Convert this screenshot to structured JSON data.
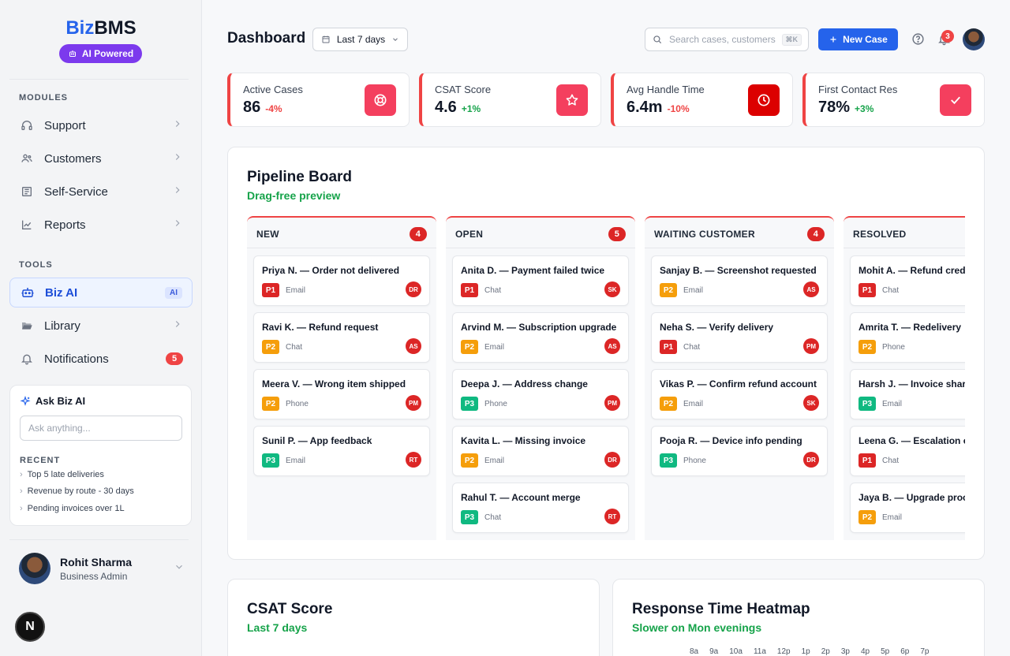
{
  "sidebar": {
    "logo_a": "Biz",
    "logo_b": "BMS",
    "ai_badge": "AI Powered",
    "modules_label": "MODULES",
    "modules": [
      {
        "label": "Support",
        "icon": "headset-icon"
      },
      {
        "label": "Customers",
        "icon": "users-icon"
      },
      {
        "label": "Self-Service",
        "icon": "newspaper-icon"
      },
      {
        "label": "Reports",
        "icon": "chart-line-icon"
      }
    ],
    "tools_label": "TOOLS",
    "tools": {
      "biz_ai": {
        "label": "Biz AI",
        "tag": "AI"
      },
      "library": {
        "label": "Library"
      },
      "notifications": {
        "label": "Notifications",
        "count": "5"
      }
    },
    "ask": {
      "title": "Ask Biz AI",
      "placeholder": "Ask anything...",
      "recent_label": "RECENT",
      "recent": [
        "Top 5 late deliveries",
        "Revenue by route - 30 days",
        "Pending invoices over 1L"
      ]
    },
    "user": {
      "name": "Rohit Sharma",
      "role": "Business Admin"
    },
    "n_button": "N"
  },
  "header": {
    "title": "Dashboard",
    "range": "Last 7 days",
    "search_placeholder": "Search cases, customers...",
    "shortcut": "⌘K",
    "new_case": "New Case",
    "notification_count": "3"
  },
  "kpis": [
    {
      "label": "Active Cases",
      "value": "86",
      "delta": "-4%",
      "trend": "neg",
      "icon": "lifebuoy-icon",
      "color": "#f43f5e"
    },
    {
      "label": "CSAT Score",
      "value": "4.6",
      "delta": "+1%",
      "trend": "pos",
      "icon": "star-icon",
      "color": "#f43f5e"
    },
    {
      "label": "Avg Handle Time",
      "value": "6.4m",
      "delta": "-10%",
      "trend": "neg",
      "icon": "clock-icon",
      "color": "#dc0000"
    },
    {
      "label": "First Contact Res",
      "value": "78%",
      "delta": "+3%",
      "trend": "pos",
      "icon": "check-icon",
      "color": "#f43f5e"
    }
  ],
  "pipeline": {
    "title": "Pipeline Board",
    "subtitle": "Drag-free preview",
    "columns": [
      {
        "name": "NEW",
        "count": "4",
        "cards": [
          {
            "title": "Priya N. — Order not delivered",
            "priority": "P1",
            "channel": "Email",
            "assignee": "DR"
          },
          {
            "title": "Ravi K. — Refund request",
            "priority": "P2",
            "channel": "Chat",
            "assignee": "AS"
          },
          {
            "title": "Meera V. — Wrong item shipped",
            "priority": "P2",
            "channel": "Phone",
            "assignee": "PM"
          },
          {
            "title": "Sunil P. — App feedback",
            "priority": "P3",
            "channel": "Email",
            "assignee": "RT"
          }
        ]
      },
      {
        "name": "OPEN",
        "count": "5",
        "cards": [
          {
            "title": "Anita D. — Payment failed twice",
            "priority": "P1",
            "channel": "Chat",
            "assignee": "SK"
          },
          {
            "title": "Arvind M. — Subscription upgrade",
            "priority": "P2",
            "channel": "Email",
            "assignee": "AS"
          },
          {
            "title": "Deepa J. — Address change",
            "priority": "P3",
            "channel": "Phone",
            "assignee": "PM"
          },
          {
            "title": "Kavita L. — Missing invoice",
            "priority": "P2",
            "channel": "Email",
            "assignee": "DR"
          },
          {
            "title": "Rahul T. — Account merge",
            "priority": "P3",
            "channel": "Chat",
            "assignee": "RT"
          }
        ]
      },
      {
        "name": "WAITING CUSTOMER",
        "count": "4",
        "cards": [
          {
            "title": "Sanjay B. — Screenshot requested",
            "priority": "P2",
            "channel": "Email",
            "assignee": "AS"
          },
          {
            "title": "Neha S. — Verify delivery",
            "priority": "P1",
            "channel": "Chat",
            "assignee": "PM"
          },
          {
            "title": "Vikas P. — Confirm refund account",
            "priority": "P2",
            "channel": "Email",
            "assignee": "SK"
          },
          {
            "title": "Pooja R. — Device info pending",
            "priority": "P3",
            "channel": "Phone",
            "assignee": "DR"
          }
        ]
      },
      {
        "name": "RESOLVED",
        "count": "",
        "cards": [
          {
            "title": "Mohit A. — Refund credited",
            "priority": "P1",
            "channel": "Chat",
            "assignee": ""
          },
          {
            "title": "Amrita T. — Redelivery",
            "priority": "P2",
            "channel": "Phone",
            "assignee": ""
          },
          {
            "title": "Harsh J. — Invoice shared",
            "priority": "P3",
            "channel": "Email",
            "assignee": ""
          },
          {
            "title": "Leena G. — Escalation closed",
            "priority": "P1",
            "channel": "Chat",
            "assignee": ""
          },
          {
            "title": "Jaya B. — Upgrade processed",
            "priority": "P2",
            "channel": "Email",
            "assignee": ""
          }
        ]
      }
    ]
  },
  "csat_panel": {
    "title": "CSAT Score",
    "subtitle": "Last 7 days"
  },
  "heatmap_panel": {
    "title": "Response Time Heatmap",
    "subtitle": "Slower on Mon evenings",
    "hours": [
      "8a",
      "9a",
      "10a",
      "11a",
      "12p",
      "1p",
      "2p",
      "3p",
      "4p",
      "5p",
      "6p",
      "7p"
    ]
  }
}
